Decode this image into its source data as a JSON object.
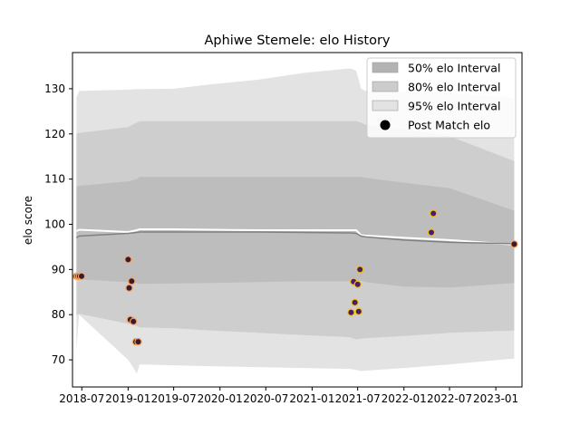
{
  "chart_data": {
    "type": "scatter",
    "title": "Aphiwe Stemele: elo History",
    "xlabel": "",
    "ylabel": "elo score",
    "ylim": [
      64,
      138
    ],
    "xlim": [
      "2018-05-25",
      "2023-04-15"
    ],
    "x_ticks": [
      {
        "date": "2018-07-01",
        "label": "2018-07"
      },
      {
        "date": "2019-01-01",
        "label": "2019-01"
      },
      {
        "date": "2019-07-01",
        "label": "2019-07"
      },
      {
        "date": "2020-01-01",
        "label": "2020-01"
      },
      {
        "date": "2020-07-01",
        "label": "2020-07"
      },
      {
        "date": "2021-01-01",
        "label": "2021-01"
      },
      {
        "date": "2021-07-01",
        "label": "2021-07"
      },
      {
        "date": "2022-01-01",
        "label": "2022-01"
      },
      {
        "date": "2022-07-01",
        "label": "2022-07"
      },
      {
        "date": "2023-01-01",
        "label": "2023-01"
      }
    ],
    "y_ticks": [
      70,
      80,
      90,
      100,
      110,
      120,
      130
    ],
    "legend": {
      "placement": "top-right",
      "entries": [
        {
          "label": "50% elo Interval",
          "color": "#b3b3b3"
        },
        {
          "label": "80% elo Interval",
          "color": "#cccccc"
        },
        {
          "label": "95% elo Interval",
          "color": "#e3e3e3"
        },
        {
          "label": "Post Match elo",
          "color": "#000000"
        }
      ]
    },
    "colors": {
      "band95": "#e3e3e3",
      "band80": "#cecece",
      "band50": "#bdbdbd",
      "mean_line": "#808080",
      "median_line": "#ffffff",
      "point_edge_orange": "#f4a261",
      "point_edge_yellow": "#f0c419",
      "point_fill_dark": "#3a1a2e",
      "point_fill_purple": "#4b1d6b"
    },
    "intervals": {
      "dates": [
        "2018-06-10",
        "2018-06-20",
        "2019-01-01",
        "2019-02-05",
        "2019-02-15",
        "2019-07-01",
        "2019-12-01",
        "2020-06-01",
        "2020-12-01",
        "2021-06-01",
        "2021-06-25",
        "2021-07-15",
        "2021-08-01",
        "2022-01-01",
        "2022-07-01",
        "2023-03-15"
      ],
      "band95_upper": [
        128,
        129.5,
        129.8,
        129.9,
        129.9,
        130,
        131,
        132,
        133.5,
        134.5,
        134,
        130,
        129.5,
        129.3,
        129,
        128
      ],
      "band95_lower": [
        72,
        80,
        70,
        67,
        69,
        68.8,
        68.6,
        68.4,
        68.2,
        68,
        67.8,
        67.5,
        67.6,
        68.2,
        69,
        70.3
      ],
      "band80_upper": [
        120,
        120.2,
        121.5,
        122.5,
        122.8,
        122.8,
        122.8,
        122.8,
        122.8,
        122.8,
        122.8,
        122.5,
        122,
        121,
        119.5,
        114
      ],
      "band80_lower": [
        80,
        80.2,
        78,
        77.5,
        77.2,
        77,
        76.5,
        76,
        75.5,
        75,
        74.5,
        74.7,
        74.8,
        75.3,
        76,
        76.5
      ],
      "band50_upper": [
        108.3,
        108.5,
        109.5,
        110,
        110.5,
        110.5,
        110.5,
        110.5,
        110.5,
        110.5,
        110.5,
        110.5,
        110.3,
        109.2,
        108,
        103
      ],
      "band50_lower": [
        88,
        87.8,
        87.2,
        87,
        86.8,
        86.9,
        87,
        87.2,
        87.4,
        87.4,
        87.5,
        87.5,
        87.2,
        86.2,
        86,
        87
      ],
      "mean": [
        97,
        97.4,
        98,
        98.2,
        98.3,
        98.3,
        98.3,
        98.3,
        98.2,
        98.1,
        98.0,
        97.4,
        97.2,
        96.5,
        96,
        95.7
      ],
      "median": [
        98.5,
        98.8,
        98.3,
        98.7,
        98.9,
        98.9,
        98.8,
        98.7,
        98.7,
        98.7,
        98.7,
        97.6,
        97.5,
        97,
        96.5,
        95.5
      ]
    },
    "series": [
      {
        "name": "Post Match elo",
        "points": [
          {
            "date": "2018-06-10",
            "elo": 88.5,
            "edge": "orange",
            "fill": "dark"
          },
          {
            "date": "2018-06-16",
            "elo": 88.5,
            "edge": "orange",
            "fill": "dark"
          },
          {
            "date": "2018-06-22",
            "elo": 88.5,
            "edge": "orange",
            "fill": "dark"
          },
          {
            "date": "2018-06-30",
            "elo": 88.5,
            "edge": "orange",
            "fill": "dark"
          },
          {
            "date": "2019-01-01",
            "elo": 92.2,
            "edge": "orange",
            "fill": "dark"
          },
          {
            "date": "2019-01-05",
            "elo": 85.9,
            "edge": "orange",
            "fill": "dark"
          },
          {
            "date": "2019-01-15",
            "elo": 87.4,
            "edge": "orange",
            "fill": "dark"
          },
          {
            "date": "2019-01-10",
            "elo": 78.9,
            "edge": "orange",
            "fill": "dark"
          },
          {
            "date": "2019-01-22",
            "elo": 78.5,
            "edge": "orange",
            "fill": "dark"
          },
          {
            "date": "2019-02-01",
            "elo": 74.0,
            "edge": "orange",
            "fill": "dark"
          },
          {
            "date": "2019-02-10",
            "elo": 74.0,
            "edge": "orange",
            "fill": "dark"
          },
          {
            "date": "2021-06-05",
            "elo": 80.5,
            "edge": "yellow",
            "fill": "purple"
          },
          {
            "date": "2021-06-15",
            "elo": 87.3,
            "edge": "yellow",
            "fill": "purple"
          },
          {
            "date": "2021-06-20",
            "elo": 82.7,
            "edge": "yellow",
            "fill": "purple"
          },
          {
            "date": "2021-07-01",
            "elo": 86.7,
            "edge": "yellow",
            "fill": "purple"
          },
          {
            "date": "2021-07-05",
            "elo": 80.7,
            "edge": "yellow",
            "fill": "purple"
          },
          {
            "date": "2021-07-10",
            "elo": 90.0,
            "edge": "yellow",
            "fill": "purple"
          },
          {
            "date": "2022-04-20",
            "elo": 98.2,
            "edge": "yellow",
            "fill": "purple"
          },
          {
            "date": "2022-04-28",
            "elo": 102.4,
            "edge": "yellow",
            "fill": "purple"
          },
          {
            "date": "2023-03-15",
            "elo": 95.6,
            "edge": "orange",
            "fill": "dark"
          }
        ]
      }
    ]
  }
}
